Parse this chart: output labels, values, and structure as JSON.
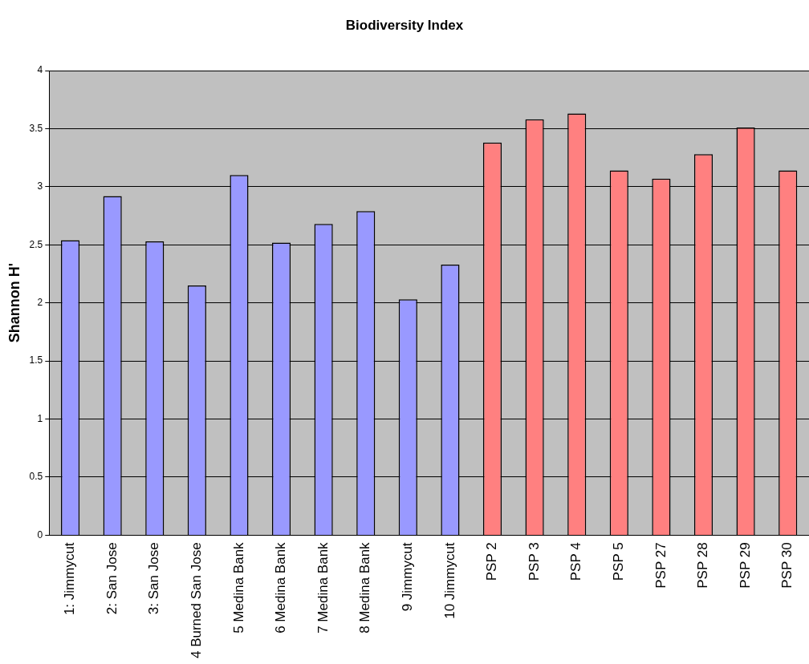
{
  "chart_data": {
    "type": "bar",
    "title": "Biodiversity Index",
    "ylabel": "Shannon H'",
    "categories": [
      "1: Jimmycut",
      "2: San Jose",
      "3: San Jose",
      "4 Burned San Jose",
      "5 Medina Bank",
      "6 Medina Bank",
      "7 Medina Bank",
      "8 Medina Bank",
      "9 Jimmycut",
      "10 Jimmycut",
      "PSP 2",
      "PSP 3",
      "PSP 4",
      "PSP 5",
      "PSP 27",
      "PSP 28",
      "PSP 29",
      "PSP 30"
    ],
    "values": [
      2.54,
      2.92,
      2.53,
      2.15,
      3.1,
      2.52,
      2.68,
      2.79,
      2.03,
      2.33,
      3.38,
      3.58,
      3.63,
      3.14,
      3.07,
      3.28,
      3.51,
      3.14
    ],
    "colors": [
      "#9999ff",
      "#9999ff",
      "#9999ff",
      "#9999ff",
      "#9999ff",
      "#9999ff",
      "#9999ff",
      "#9999ff",
      "#9999ff",
      "#9999ff",
      "#ff8080",
      "#ff8080",
      "#ff8080",
      "#ff8080",
      "#ff8080",
      "#ff8080",
      "#ff8080",
      "#ff8080"
    ],
    "ylim": [
      0,
      4
    ],
    "yticks": [
      0,
      0.5,
      1,
      1.5,
      2,
      2.5,
      3,
      3.5,
      4
    ],
    "grid": "y",
    "legend": false
  }
}
